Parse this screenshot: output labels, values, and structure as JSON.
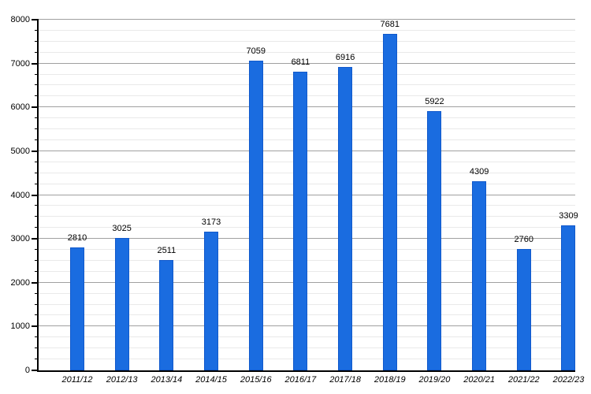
{
  "chart_data": {
    "type": "bar",
    "title": "",
    "xlabel": "",
    "ylabel": "",
    "categories": [
      "2011/12",
      "2012/13",
      "2013/14",
      "2014/15",
      "2015/16",
      "2016/17",
      "2017/18",
      "2018/19",
      "2019/20",
      "2020/21",
      "2021/22",
      "2022/23"
    ],
    "values": [
      2810,
      3025,
      2511,
      3173,
      7059,
      6811,
      6916,
      7681,
      5922,
      4309,
      2760,
      3309
    ],
    "ylim": [
      0,
      8000
    ],
    "y_major_step": 1000,
    "y_minor_step": 250,
    "y_tick_labels": [
      "0",
      "1000",
      "2000",
      "3000",
      "4000",
      "5000",
      "6000",
      "7000",
      "8000"
    ],
    "value_labels_shown": true,
    "legend": "none",
    "grid": {
      "major": true,
      "minor": true,
      "major_color": "#a0a0a0",
      "minor_color": "#e9e9e9"
    },
    "colors": {
      "bar_fill": "#1a6ce0",
      "bar_border": "#1159cb",
      "axis": "#000000",
      "text": "#000000",
      "background": "#ffffff"
    },
    "x_label_style": "italic"
  }
}
